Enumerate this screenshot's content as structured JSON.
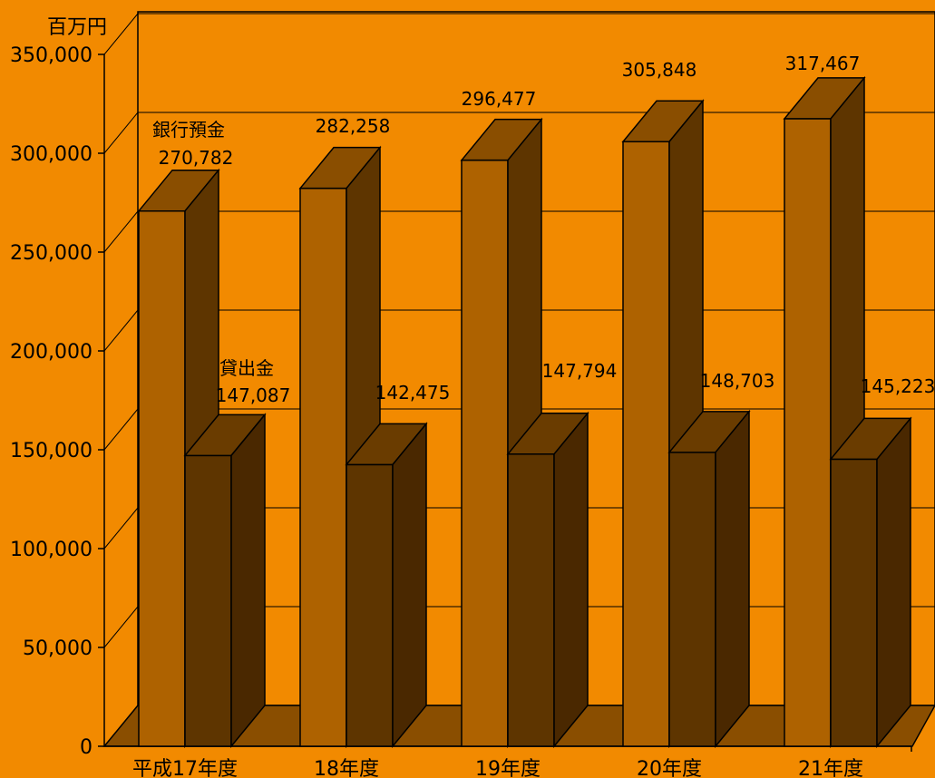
{
  "chart_data": {
    "type": "bar",
    "unit": "百万円",
    "categories": [
      "平成17年度",
      "18年度",
      "19年度",
      "20年度",
      "21年度"
    ],
    "series": [
      {
        "name": "銀行預金",
        "values": [
          270782,
          282258,
          296477,
          305848,
          317467
        ],
        "color": "#AE6200"
      },
      {
        "name": "貸出金",
        "values": [
          147087,
          142475,
          147794,
          148703,
          145223
        ],
        "color": "#5E3500"
      }
    ],
    "y_ticks": [
      "0",
      "50,000",
      "100,000",
      "150,000",
      "200,000",
      "250,000",
      "300,000",
      "350,000"
    ],
    "ylim": [
      0,
      350000
    ],
    "data_labels": [
      [
        "270,782",
        "282,258",
        "296,477",
        "305,848",
        "317,467"
      ],
      [
        "147,087",
        "142,475",
        "147,794",
        "148,703",
        "145,223"
      ]
    ],
    "grid": true,
    "three_d": true,
    "background": "#F28A00"
  }
}
